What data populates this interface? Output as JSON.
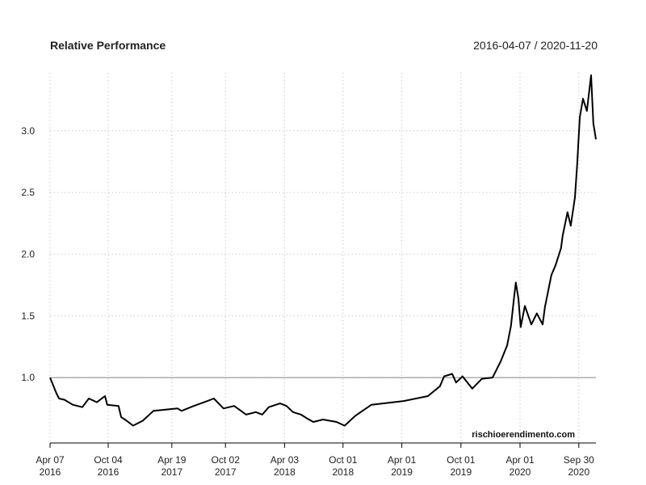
{
  "chart_data": {
    "type": "line",
    "title": "Relative Performance",
    "date_range": "2016-04-07 / 2020-11-20",
    "watermark": "rischioerendimento.com",
    "xlabel": "",
    "ylabel": "",
    "x_unit": "days since 2016-04-07",
    "xlim": [
      0,
      1690
    ],
    "ylim": [
      0.47,
      3.47
    ],
    "grid": true,
    "reference_line": 1.0,
    "y_ticks": [
      {
        "value": 1.0,
        "label": "1.0"
      },
      {
        "value": 1.5,
        "label": "1.5"
      },
      {
        "value": 2.0,
        "label": "2.0"
      },
      {
        "value": 2.5,
        "label": "2.5"
      },
      {
        "value": 3.0,
        "label": "3.0"
      }
    ],
    "x_ticks": [
      {
        "value": 0,
        "line1": "Apr 07",
        "line2": "2016"
      },
      {
        "value": 180,
        "line1": "Oct 04",
        "line2": "2016"
      },
      {
        "value": 377,
        "line1": "Apr 19",
        "line2": "2017"
      },
      {
        "value": 543,
        "line1": "Oct 02",
        "line2": "2017"
      },
      {
        "value": 726,
        "line1": "Apr 03",
        "line2": "2018"
      },
      {
        "value": 907,
        "line1": "Oct 01",
        "line2": "2018"
      },
      {
        "value": 1089,
        "line1": "Apr 01",
        "line2": "2019"
      },
      {
        "value": 1272,
        "line1": "Oct 01",
        "line2": "2019"
      },
      {
        "value": 1455,
        "line1": "Apr 01",
        "line2": "2020"
      },
      {
        "value": 1637,
        "line1": "Sep 30",
        "line2": "2020"
      }
    ],
    "series": [
      {
        "name": "Relative Performance",
        "color": "#000000",
        "points": [
          [
            0,
            1.0
          ],
          [
            20,
            0.87
          ],
          [
            28,
            0.83
          ],
          [
            45,
            0.82
          ],
          [
            70,
            0.78
          ],
          [
            100,
            0.76
          ],
          [
            120,
            0.83
          ],
          [
            145,
            0.8
          ],
          [
            170,
            0.85
          ],
          [
            177,
            0.78
          ],
          [
            212,
            0.77
          ],
          [
            220,
            0.68
          ],
          [
            237,
            0.65
          ],
          [
            257,
            0.61
          ],
          [
            287,
            0.65
          ],
          [
            320,
            0.73
          ],
          [
            395,
            0.75
          ],
          [
            407,
            0.73
          ],
          [
            445,
            0.77
          ],
          [
            477,
            0.8
          ],
          [
            507,
            0.83
          ],
          [
            537,
            0.75
          ],
          [
            570,
            0.77
          ],
          [
            607,
            0.7
          ],
          [
            637,
            0.72
          ],
          [
            657,
            0.7
          ],
          [
            677,
            0.76
          ],
          [
            712,
            0.79
          ],
          [
            732,
            0.77
          ],
          [
            752,
            0.72
          ],
          [
            777,
            0.7
          ],
          [
            795,
            0.67
          ],
          [
            815,
            0.64
          ],
          [
            845,
            0.66
          ],
          [
            887,
            0.64
          ],
          [
            912,
            0.61
          ],
          [
            945,
            0.69
          ],
          [
            995,
            0.78
          ],
          [
            1095,
            0.81
          ],
          [
            1170,
            0.85
          ],
          [
            1207,
            0.93
          ],
          [
            1220,
            1.01
          ],
          [
            1245,
            1.03
          ],
          [
            1257,
            0.96
          ],
          [
            1277,
            1.01
          ],
          [
            1307,
            0.91
          ],
          [
            1337,
            0.99
          ],
          [
            1370,
            1.0
          ],
          [
            1395,
            1.13
          ],
          [
            1415,
            1.26
          ],
          [
            1427,
            1.42
          ],
          [
            1437,
            1.66
          ],
          [
            1442,
            1.77
          ],
          [
            1450,
            1.64
          ],
          [
            1457,
            1.41
          ],
          [
            1470,
            1.58
          ],
          [
            1490,
            1.43
          ],
          [
            1507,
            1.52
          ],
          [
            1525,
            1.43
          ],
          [
            1532,
            1.57
          ],
          [
            1552,
            1.83
          ],
          [
            1565,
            1.91
          ],
          [
            1582,
            2.05
          ],
          [
            1587,
            2.15
          ],
          [
            1602,
            2.34
          ],
          [
            1612,
            2.23
          ],
          [
            1625,
            2.46
          ],
          [
            1632,
            2.73
          ],
          [
            1640,
            3.11
          ],
          [
            1650,
            3.26
          ],
          [
            1662,
            3.16
          ],
          [
            1675,
            3.45
          ],
          [
            1682,
            3.06
          ],
          [
            1690,
            2.93
          ]
        ]
      }
    ]
  }
}
